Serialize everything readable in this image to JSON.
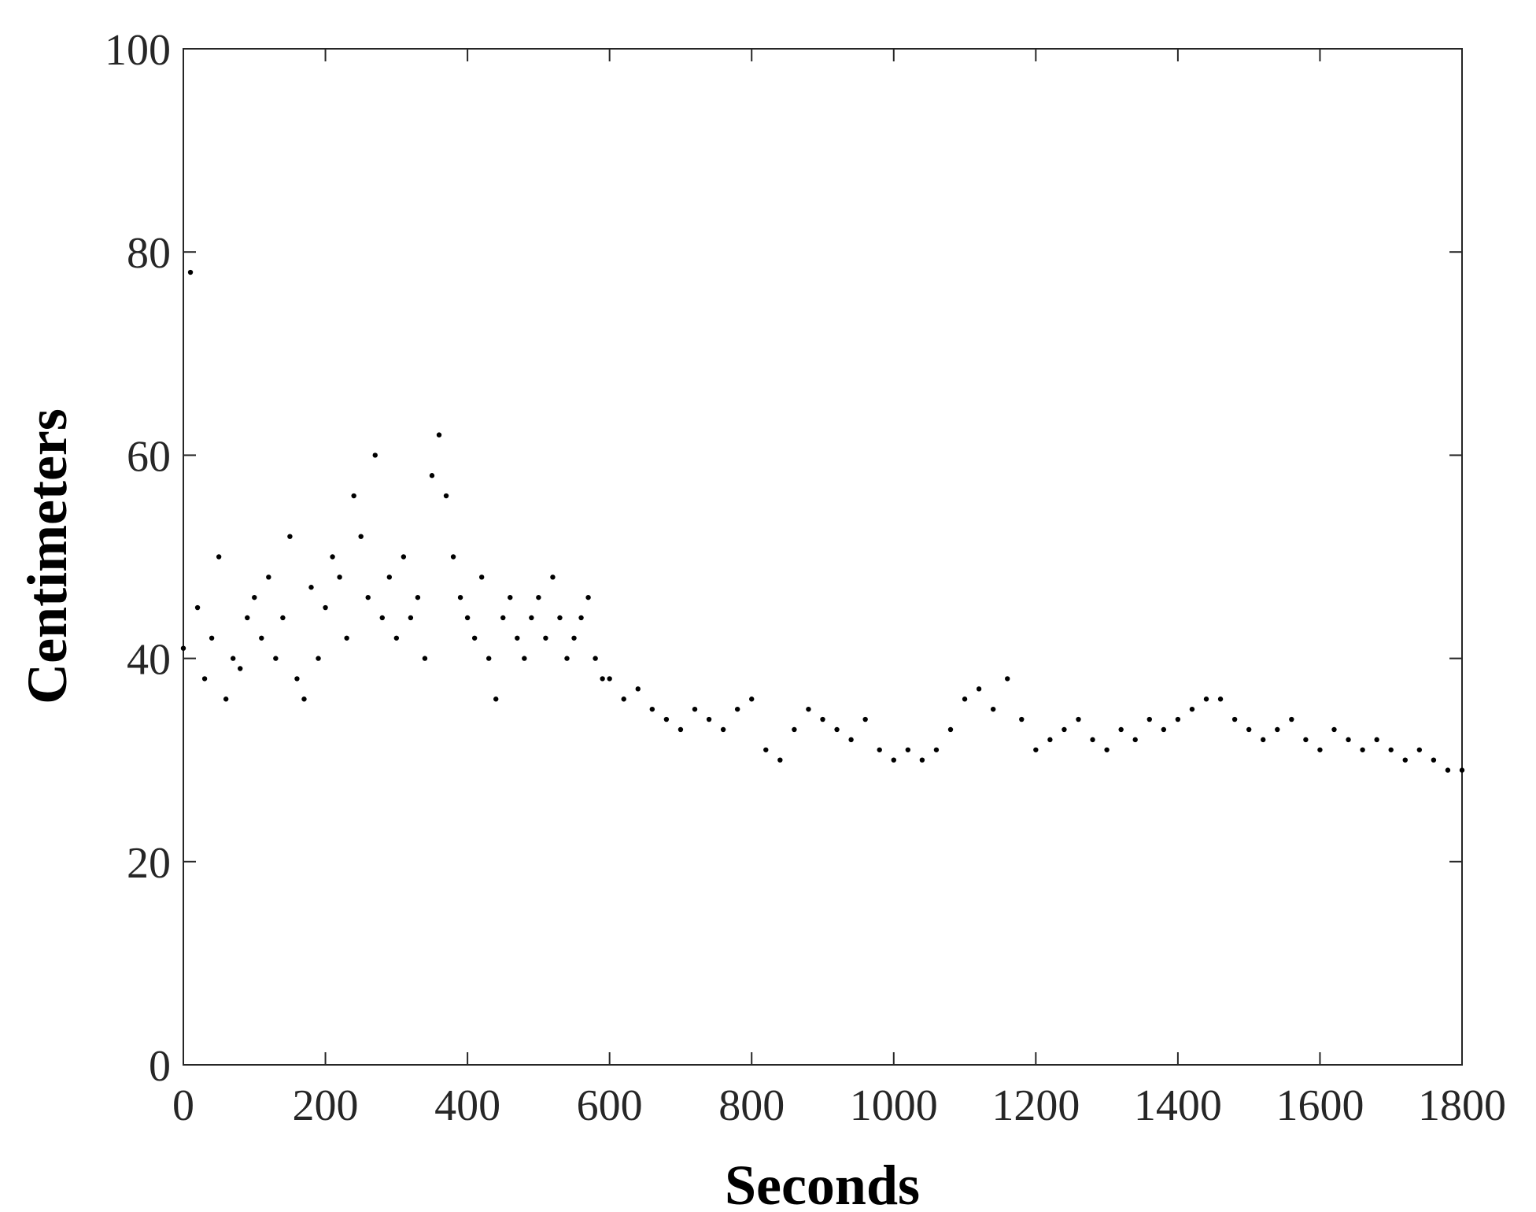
{
  "chart_data": {
    "type": "scatter",
    "title": "",
    "xlabel": "Seconds",
    "ylabel": "Centimeters",
    "xlim": [
      0,
      1800
    ],
    "ylim": [
      0,
      100
    ],
    "x_ticks": [
      0,
      200,
      400,
      600,
      800,
      1000,
      1200,
      1400,
      1600,
      1800
    ],
    "y_ticks": [
      0,
      20,
      40,
      60,
      80,
      100
    ],
    "x_tick_labels": [
      "0",
      "200",
      "400",
      "600",
      "800",
      "1000",
      "1200",
      "1400",
      "1600",
      "1800"
    ],
    "y_tick_labels": [
      "0",
      "20",
      "40",
      "60",
      "80",
      "100"
    ],
    "grid": false,
    "marker_color": "#000000",
    "series": [
      {
        "x": [
          0,
          10,
          20,
          30,
          40,
          50,
          60,
          70,
          80,
          90,
          100,
          110,
          120,
          130,
          140,
          150,
          160,
          170,
          180,
          190,
          200,
          210,
          220,
          230,
          240,
          250,
          260,
          270,
          280,
          290,
          300,
          310,
          320,
          330,
          340,
          350,
          360,
          370,
          380,
          390,
          400,
          410,
          420,
          430,
          440,
          450,
          460,
          470,
          480,
          490,
          500,
          510,
          520,
          530,
          540,
          550,
          560,
          570,
          580,
          590,
          600,
          620,
          640,
          660,
          680,
          700,
          720,
          740,
          760,
          780,
          800,
          820,
          840,
          860,
          880,
          900,
          920,
          940,
          960,
          980,
          1000,
          1020,
          1040,
          1060,
          1080,
          1100,
          1120,
          1140,
          1160,
          1180,
          1200,
          1220,
          1240,
          1260,
          1280,
          1300,
          1320,
          1340,
          1360,
          1380,
          1400,
          1420,
          1440,
          1460,
          1480,
          1500,
          1520,
          1540,
          1560,
          1580,
          1600,
          1620,
          1640,
          1660,
          1680,
          1700,
          1720,
          1740,
          1760,
          1780,
          1800
        ],
        "y": [
          41,
          78,
          45,
          38,
          42,
          50,
          36,
          40,
          39,
          44,
          46,
          42,
          48,
          40,
          44,
          52,
          38,
          36,
          47,
          40,
          45,
          50,
          48,
          42,
          56,
          52,
          46,
          60,
          44,
          48,
          42,
          50,
          44,
          46,
          40,
          58,
          62,
          56,
          50,
          46,
          44,
          42,
          48,
          40,
          36,
          44,
          46,
          42,
          40,
          44,
          46,
          42,
          48,
          44,
          40,
          42,
          44,
          46,
          40,
          38,
          38,
          36,
          37,
          35,
          34,
          33,
          35,
          34,
          33,
          35,
          36,
          31,
          30,
          33,
          35,
          34,
          33,
          32,
          34,
          31,
          30,
          31,
          30,
          31,
          33,
          36,
          37,
          35,
          38,
          34,
          31,
          32,
          33,
          34,
          32,
          31,
          33,
          32,
          34,
          33,
          34,
          35,
          36,
          36,
          34,
          33,
          32,
          33,
          34,
          32,
          31,
          33,
          32,
          31,
          32,
          31,
          30,
          31,
          30,
          29,
          29
        ]
      }
    ]
  }
}
